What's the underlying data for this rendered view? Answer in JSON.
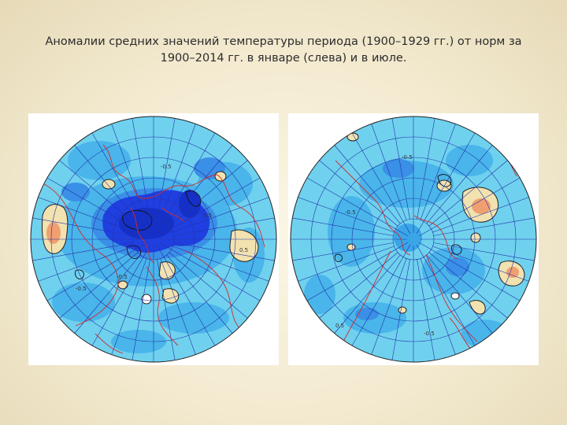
{
  "slide": {
    "title_line1": "Аномалии средних значений температуры периода (1900–1929 гг.) от норм за",
    "title_line2": "1900–2014 гг. в январе (слева) и в июле."
  },
  "maps": {
    "left": {
      "contour_labels": [
        "-0.5",
        "-0.5",
        "0.5",
        "0.5",
        "-0.5"
      ]
    },
    "right": {
      "contour_labels": [
        "-0.5",
        "-0.5",
        "0.5",
        "-0.5"
      ]
    }
  },
  "colors": {
    "ocean_light": "#6fd1ee",
    "ocean_mid": "#3aa6e8",
    "anomaly_strong": "#1f3fe0",
    "positive_anomaly": "#f2e2b0",
    "positive_core": "#f0a070",
    "coastline": "#d12b2b",
    "grid": "#2233aa"
  }
}
